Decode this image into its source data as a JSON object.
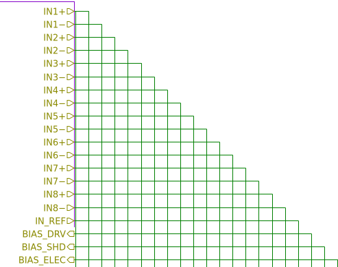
{
  "colors": {
    "wire": "#007f00",
    "label": "#8a8a00",
    "pin_shape": "#8a8a00",
    "sheet_border": "#8400c8",
    "background": "#ffffff"
  },
  "labels": [
    {
      "text": "IN1+",
      "shape": "input"
    },
    {
      "text": "IN1−",
      "shape": "input"
    },
    {
      "text": "IN2+",
      "shape": "input"
    },
    {
      "text": "IN2−",
      "shape": "input"
    },
    {
      "text": "IN3+",
      "shape": "input"
    },
    {
      "text": "IN3−",
      "shape": "input"
    },
    {
      "text": "IN4+",
      "shape": "input"
    },
    {
      "text": "IN4−",
      "shape": "input"
    },
    {
      "text": "IN5+",
      "shape": "input"
    },
    {
      "text": "IN5−",
      "shape": "input"
    },
    {
      "text": "IN6+",
      "shape": "input"
    },
    {
      "text": "IN6−",
      "shape": "input"
    },
    {
      "text": "IN7+",
      "shape": "input"
    },
    {
      "text": "IN7−",
      "shape": "input"
    },
    {
      "text": "IN8+",
      "shape": "input"
    },
    {
      "text": "IN8−",
      "shape": "input"
    },
    {
      "text": "IN_REF",
      "shape": "input"
    },
    {
      "text": "BIAS_DRV",
      "shape": "output"
    },
    {
      "text": "BIAS_SHD",
      "shape": "output"
    },
    {
      "text": "BIAS_ELEC",
      "shape": "output"
    }
  ]
}
